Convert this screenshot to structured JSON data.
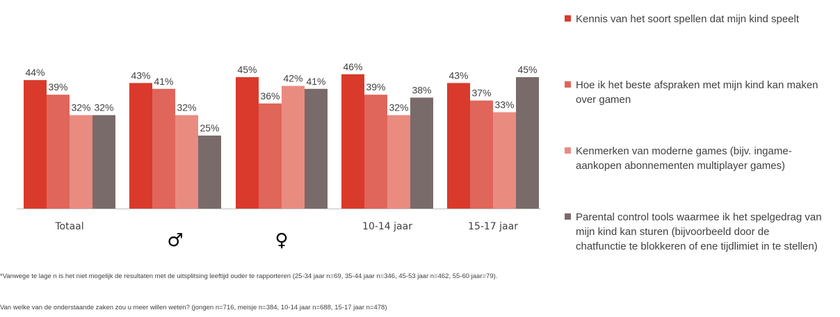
{
  "chart_data": {
    "type": "bar",
    "categories": [
      "Totaal",
      "♂",
      "♀",
      "10-14 jaar",
      "15-17 jaar"
    ],
    "series": [
      {
        "name": "Kennis van het soort spellen dat mijn kind speelt",
        "color": "#d93a2b",
        "values": [
          44,
          43,
          45,
          46,
          43
        ]
      },
      {
        "name": "Hoe ik het beste afspraken met mijn kind kan maken over gamen",
        "color": "#e0655a",
        "values": [
          39,
          41,
          36,
          39,
          37
        ]
      },
      {
        "name": "Kenmerken van moderne games (bijv. ingame-aankopen  abonnementen multiplayer games)",
        "color": "#ea8b80",
        "values": [
          32,
          32,
          42,
          32,
          33
        ]
      },
      {
        "name": "Parental control tools waarmee ik het spelgedrag van mijn kind kan sturen (bijvoorbeeld door de chatfunctie te blokkeren of ene tijdlimiet in te stellen)",
        "color": "#796b6a",
        "values": [
          32,
          25,
          41,
          38,
          45
        ]
      }
    ],
    "value_suffix": "%",
    "ylim": [
      0,
      50
    ],
    "grid": false,
    "legend_position": "right"
  },
  "legend": {
    "items": [
      "Kennis van het soort spellen dat mijn kind speelt",
      "Hoe ik het beste afspraken met mijn kind kan maken over gamen",
      "Kenmerken van moderne games (bijv. ingame-aankopen  abonnementen multiplayer games)",
      "Parental control tools waarmee ik het spelgedrag van mijn kind kan sturen (bijvoorbeeld door de chatfunctie te blokkeren of ene tijdlimiet in te stellen)"
    ]
  },
  "footnotes": {
    "note1": "*Vanwege te lage n is het niet mogelijk de resultaten met de uitsplitsing leeftijd ouder te rapporteren (25-34 jaar n=69, 35-44 jaar n=346, 45-53 jaar n=462, 55-60 jaar=79).",
    "note2": "Van welke van de onderstaande zaken zou u meer willen weten? (jongen n=716, meisje n=384, 10-14 jaar n=688, 15-17 jaar n=478)"
  }
}
